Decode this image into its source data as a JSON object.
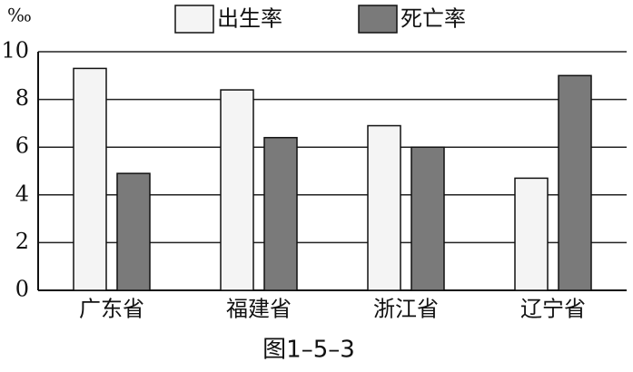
{
  "chart_data": {
    "type": "bar",
    "y_label": "‰",
    "caption": "图1–5–3",
    "categories": [
      "广东省",
      "福建省",
      "浙江省",
      "辽宁省"
    ],
    "series": [
      {
        "name": "出生率",
        "color": "#f4f4f4",
        "values": [
          9.3,
          8.4,
          6.9,
          4.7
        ]
      },
      {
        "name": "死亡率",
        "color": "#7a7a7a",
        "values": [
          4.9,
          6.4,
          6.0,
          9.0
        ]
      }
    ],
    "ylim": [
      0,
      10
    ],
    "yticks": [
      0,
      2,
      4,
      6,
      8,
      10
    ],
    "grid": true
  }
}
